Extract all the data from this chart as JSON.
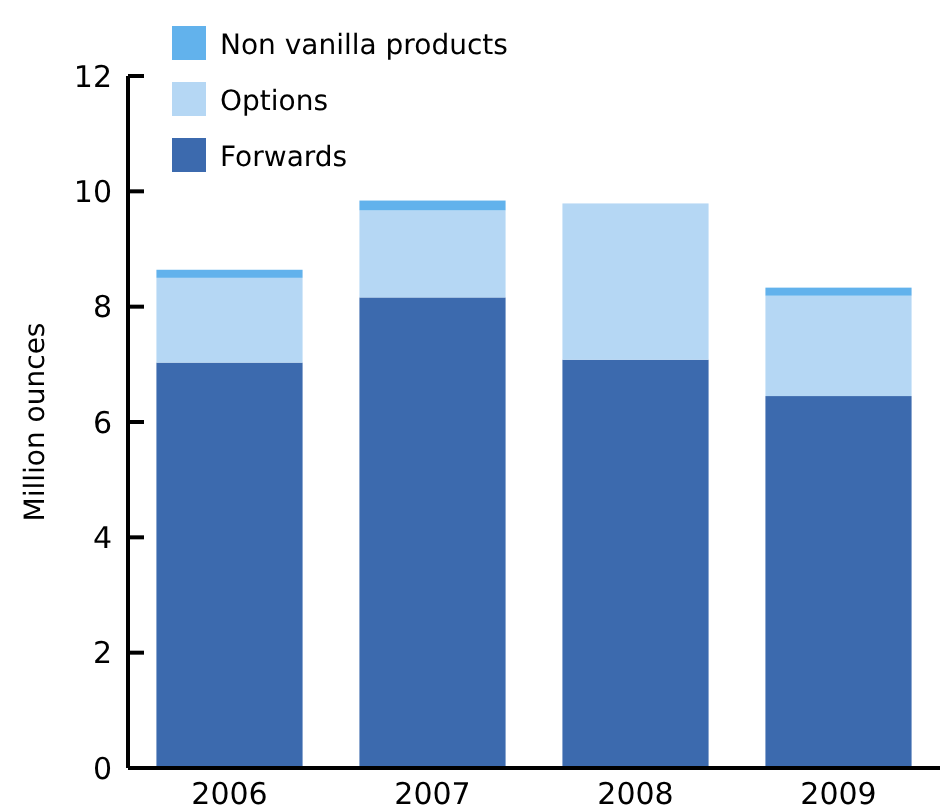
{
  "chart_data": {
    "type": "bar",
    "ylabel": "Million ounces",
    "categories": [
      "2006",
      "2007",
      "2008",
      "2009"
    ],
    "stacked": true,
    "ylim": [
      0,
      12
    ],
    "yticks": [
      0,
      2,
      4,
      6,
      8,
      10,
      12
    ],
    "grid": false,
    "legend": "top left",
    "series": [
      {
        "name": "Forwards",
        "color": "#3c6aae",
        "values": [
          7.03,
          8.16,
          7.08,
          6.45
        ]
      },
      {
        "name": "Options",
        "color": "#b5d7f4",
        "values": [
          1.47,
          1.51,
          2.71,
          1.74
        ]
      },
      {
        "name": "Non vanilla products",
        "color": "#62b2ec",
        "values": [
          0.14,
          0.17,
          0,
          0.14
        ]
      }
    ]
  }
}
